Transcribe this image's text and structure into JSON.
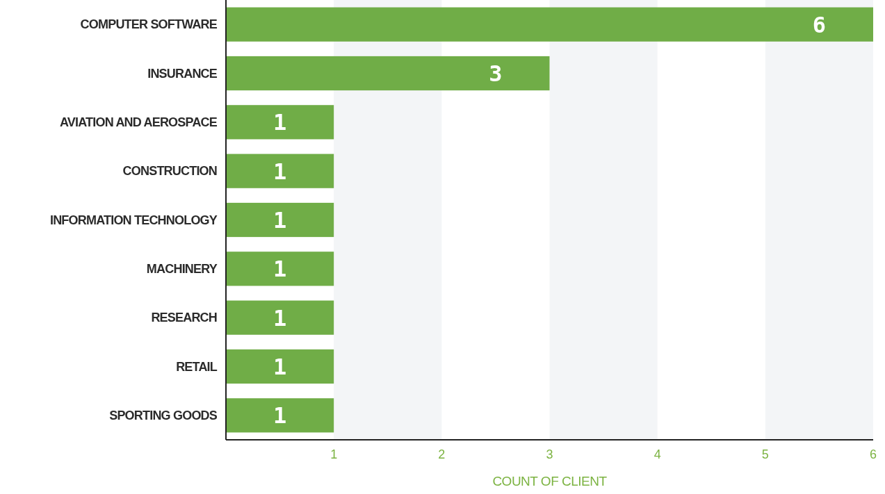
{
  "chart_data": {
    "type": "bar",
    "orientation": "horizontal",
    "categories": [
      "COMPUTER SOFTWARE",
      "INSURANCE",
      "AVIATION AND AEROSPACE",
      "CONSTRUCTION",
      "INFORMATION TECHNOLOGY",
      "MACHINERY",
      "RESEARCH",
      "RETAIL",
      "SPORTING GOODS"
    ],
    "values": [
      6,
      3,
      1,
      1,
      1,
      1,
      1,
      1,
      1
    ],
    "color": "#70ad47",
    "xlim": [
      0,
      6
    ],
    "xticks": [
      1,
      2,
      3,
      4,
      5,
      6
    ],
    "xlabel": "COUNT OF CLIENT",
    "data_labels": true,
    "bands": [
      {
        "axis": "x",
        "from": 1,
        "to": 2,
        "color": "#f3f5f7"
      },
      {
        "axis": "x",
        "from": 3,
        "to": 4,
        "color": "#f3f5f7"
      },
      {
        "axis": "x",
        "from": 5,
        "to": 6,
        "color": "#f3f5f7"
      }
    ]
  }
}
